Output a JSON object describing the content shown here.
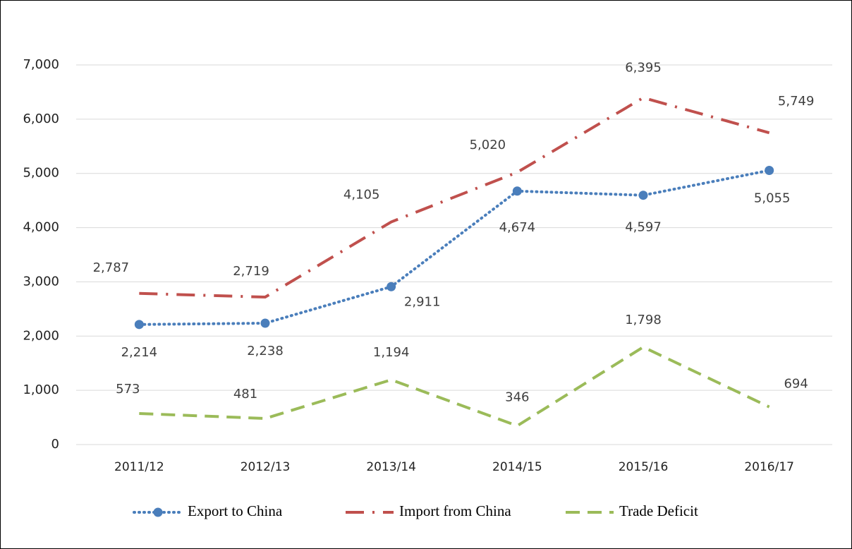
{
  "chart_data": {
    "type": "line",
    "categories": [
      "2011/12",
      "2012/13",
      "2013/14",
      "2014/15",
      "2015/16",
      "2016/17"
    ],
    "series": [
      {
        "name": "Export to China",
        "color": "#4a7ebb",
        "marker": true,
        "dash": "dotted",
        "values": [
          2214,
          2238,
          2911,
          4674,
          4597,
          5055
        ],
        "value_labels": [
          "2,214",
          "2,238",
          "2,911",
          "4,674",
          "4,597",
          "5,055"
        ]
      },
      {
        "name": "Import from China",
        "color": "#c0504d",
        "marker": false,
        "dash": "dash-dot",
        "values": [
          2787,
          2719,
          4105,
          5020,
          6395,
          5749
        ],
        "value_labels": [
          "2,787",
          "2,719",
          "4,105",
          "5,020",
          "6,395",
          "5,749"
        ]
      },
      {
        "name": "Trade Deficit",
        "color": "#9bbb59",
        "marker": false,
        "dash": "dashed",
        "values": [
          573,
          481,
          1194,
          346,
          1798,
          694
        ],
        "value_labels": [
          "573",
          "481",
          "1,194",
          "346",
          "1,798",
          "694"
        ]
      }
    ],
    "ylim": [
      0,
      7000
    ],
    "yticks": [
      0,
      {
        "value": 1000,
        "label": "1,000"
      },
      {
        "value": 2000,
        "label": "2,000"
      },
      {
        "value": 3000,
        "label": "3,000"
      },
      {
        "value": 4000,
        "label": "4,000"
      },
      {
        "value": 5000,
        "label": "5,000"
      },
      {
        "value": 6000,
        "label": "6,000"
      },
      {
        "value": 7000,
        "label": "7,000"
      }
    ],
    "grid": true,
    "legend": "bottom"
  }
}
